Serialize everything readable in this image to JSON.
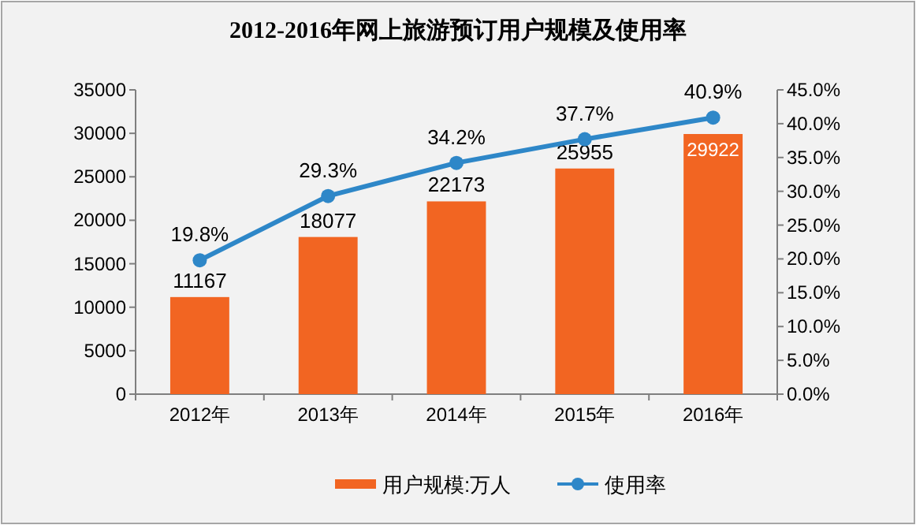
{
  "chart_data": {
    "type": "bar",
    "title": "2012-2016年网上旅游预订用户规模及使用率",
    "categories": [
      "2012年",
      "2013年",
      "2014年",
      "2015年",
      "2016年"
    ],
    "series": [
      {
        "name": "用户规模:万人",
        "color": "#f26522",
        "values": [
          11167,
          18077,
          22173,
          25955,
          29922
        ],
        "value_labels": [
          "11167",
          "18077",
          "22173",
          "25955",
          "29922"
        ]
      },
      {
        "name": "使用率",
        "type": "line",
        "axis": "y2",
        "color": "#2e87c8",
        "marker": "circle",
        "values": [
          19.8,
          29.3,
          34.2,
          37.7,
          40.9
        ],
        "value_labels": [
          "19.8%",
          "29.3%",
          "34.2%",
          "37.7%",
          "40.9%"
        ]
      }
    ],
    "ylim": [
      0,
      35000
    ],
    "yticks": [
      0,
      5000,
      10000,
      15000,
      20000,
      25000,
      30000,
      35000
    ],
    "y2lim": [
      0,
      45
    ],
    "y2ticks": [
      {
        "value": 0,
        "label": "0.0%"
      },
      {
        "value": 5,
        "label": "5.0%"
      },
      {
        "value": 10,
        "label": "10.0%"
      },
      {
        "value": 15,
        "label": "15.0%"
      },
      {
        "value": 20,
        "label": "20.0%"
      },
      {
        "value": 25,
        "label": "25.0%"
      },
      {
        "value": 30,
        "label": "30.0%"
      },
      {
        "value": 35,
        "label": "35.0%"
      },
      {
        "value": 40,
        "label": "40.0%"
      },
      {
        "value": 45,
        "label": "45.0%"
      }
    ],
    "grid": false,
    "legend": "bottom"
  }
}
